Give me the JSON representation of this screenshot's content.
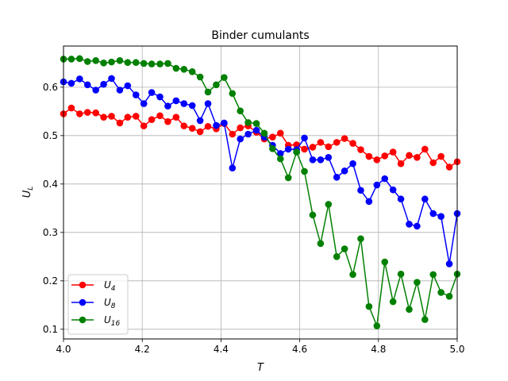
{
  "chart_data": {
    "type": "line",
    "title": "Binder cumulants",
    "xlabel": "T",
    "ylabel_main": "U",
    "ylabel_sub": "L",
    "xlim": [
      4.0,
      5.0
    ],
    "ylim": [
      0.08,
      0.685
    ],
    "xticks": [
      "4.0",
      "4.2",
      "4.4",
      "4.6",
      "4.8",
      "5.0"
    ],
    "yticks": [
      "0.1",
      "0.2",
      "0.3",
      "0.4",
      "0.5",
      "0.6"
    ],
    "xtick_values": [
      4.0,
      4.2,
      4.4,
      4.6,
      4.8,
      5.0
    ],
    "ytick_values": [
      0.1,
      0.2,
      0.3,
      0.4,
      0.5,
      0.6
    ],
    "grid": true,
    "legend_position": "lower-left",
    "x": [
      4.0,
      4.02,
      4.041,
      4.061,
      4.082,
      4.102,
      4.122,
      4.143,
      4.163,
      4.184,
      4.204,
      4.224,
      4.245,
      4.265,
      4.286,
      4.306,
      4.327,
      4.347,
      4.367,
      4.388,
      4.408,
      4.429,
      4.449,
      4.469,
      4.49,
      4.51,
      4.531,
      4.551,
      4.571,
      4.592,
      4.612,
      4.633,
      4.653,
      4.673,
      4.694,
      4.714,
      4.735,
      4.755,
      4.776,
      4.796,
      4.816,
      4.837,
      4.857,
      4.878,
      4.898,
      4.918,
      4.939,
      4.959,
      4.98,
      5.0
    ],
    "series": [
      {
        "name_main": "U",
        "name_sub": "4",
        "color": "#ff0000",
        "values": [
          0.545,
          0.557,
          0.545,
          0.548,
          0.547,
          0.538,
          0.54,
          0.526,
          0.538,
          0.54,
          0.52,
          0.533,
          0.541,
          0.529,
          0.538,
          0.52,
          0.515,
          0.508,
          0.519,
          0.514,
          0.525,
          0.503,
          0.516,
          0.52,
          0.507,
          0.493,
          0.497,
          0.505,
          0.48,
          0.481,
          0.472,
          0.476,
          0.486,
          0.477,
          0.486,
          0.494,
          0.484,
          0.471,
          0.457,
          0.45,
          0.458,
          0.466,
          0.442,
          0.459,
          0.455,
          0.472,
          0.444,
          0.457,
          0.435,
          0.446
        ]
      },
      {
        "name_main": "U",
        "name_sub": "8",
        "color": "#0000ff",
        "values": [
          0.611,
          0.608,
          0.617,
          0.605,
          0.594,
          0.606,
          0.618,
          0.594,
          0.603,
          0.584,
          0.566,
          0.589,
          0.58,
          0.561,
          0.572,
          0.566,
          0.562,
          0.531,
          0.566,
          0.521,
          0.526,
          0.433,
          0.493,
          0.503,
          0.511,
          0.497,
          0.48,
          0.463,
          0.472,
          0.471,
          0.495,
          0.45,
          0.45,
          0.455,
          0.414,
          0.427,
          0.442,
          0.387,
          0.364,
          0.398,
          0.411,
          0.388,
          0.369,
          0.317,
          0.313,
          0.369,
          0.339,
          0.333,
          0.235,
          0.339
        ]
      },
      {
        "name_main": "U",
        "name_sub": "16",
        "color": "#008000",
        "values": [
          0.658,
          0.658,
          0.659,
          0.653,
          0.655,
          0.65,
          0.652,
          0.655,
          0.651,
          0.651,
          0.649,
          0.648,
          0.648,
          0.649,
          0.639,
          0.637,
          0.632,
          0.621,
          0.59,
          0.605,
          0.62,
          0.587,
          0.551,
          0.527,
          0.525,
          0.505,
          0.473,
          0.452,
          0.413,
          0.466,
          0.426,
          0.336,
          0.277,
          0.358,
          0.25,
          0.266,
          0.213,
          0.287,
          0.147,
          0.107,
          0.239,
          0.157,
          0.214,
          0.141,
          0.197,
          0.12,
          0.213,
          0.176,
          0.168,
          0.214
        ]
      }
    ]
  }
}
